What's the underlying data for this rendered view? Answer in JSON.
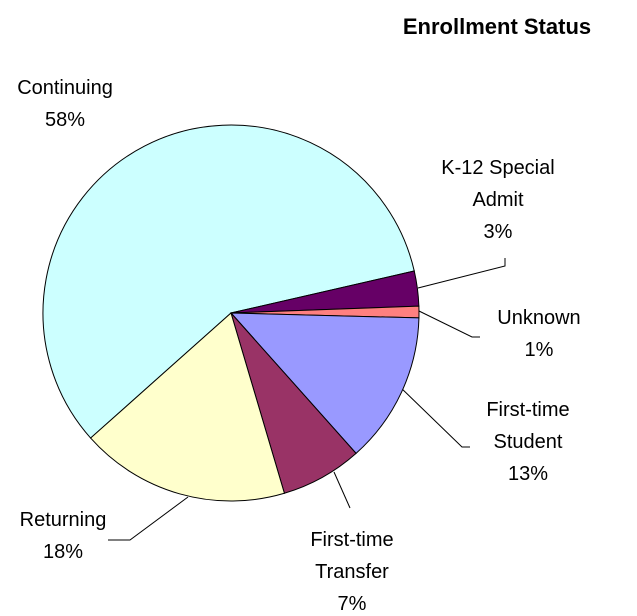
{
  "chart_data": {
    "type": "pie",
    "title": "Enrollment Status",
    "categories": [
      "Continuing",
      "K-12 Special Admit",
      "Unknown",
      "First-time Student",
      "First-time Transfer",
      "Returning"
    ],
    "values": [
      58,
      3,
      1,
      13,
      7,
      18
    ],
    "value_labels": [
      "58%",
      "3%",
      "1%",
      "13%",
      "7%",
      "18%"
    ],
    "colors": [
      "#ccffff",
      "#660066",
      "#ff8080",
      "#9999ff",
      "#993366",
      "#ffffcc"
    ]
  }
}
